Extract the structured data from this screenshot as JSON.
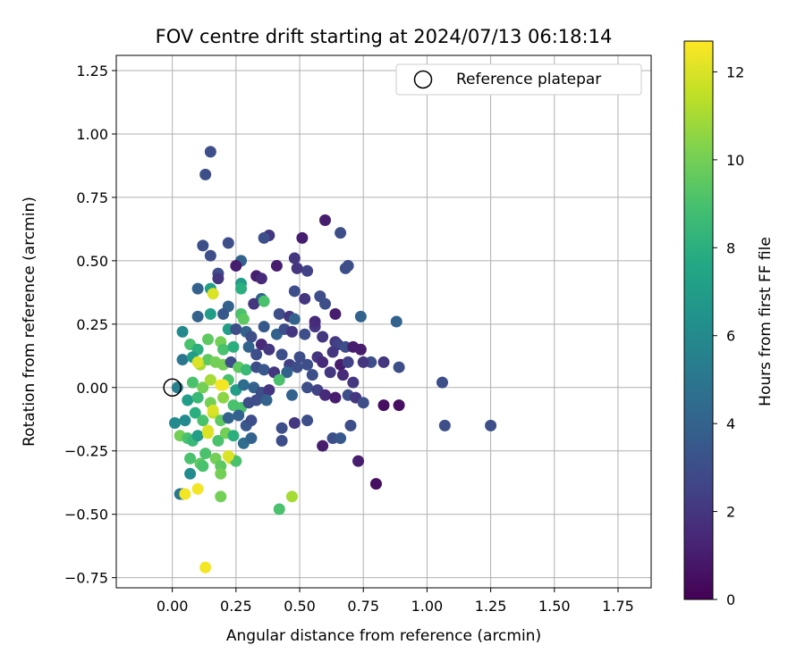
{
  "chart_data": {
    "type": "scatter",
    "title": "FOV centre drift starting at 2024/07/13 06:18:14",
    "xlabel": "Angular distance from reference (arcmin)",
    "ylabel": "Rotation from reference (arcmin)",
    "xlim": [
      -0.22,
      1.88
    ],
    "ylim": [
      -0.79,
      1.31
    ],
    "xticks": [
      0.0,
      0.25,
      0.5,
      0.75,
      1.0,
      1.25,
      1.5,
      1.75
    ],
    "xtick_labels": [
      "0.00",
      "0.25",
      "0.50",
      "0.75",
      "1.00",
      "1.25",
      "1.50",
      "1.75"
    ],
    "yticks": [
      -0.75,
      -0.5,
      -0.25,
      0.0,
      0.25,
      0.5,
      0.75,
      1.0,
      1.25
    ],
    "ytick_labels": [
      "−0.75",
      "−0.50",
      "−0.25",
      "0.00",
      "0.25",
      "0.50",
      "0.75",
      "1.00",
      "1.25"
    ],
    "grid": true,
    "colormap": "viridis",
    "colorbar": {
      "label": "Hours from first FF file",
      "min": 0,
      "max": 12.7,
      "ticks": [
        0,
        2,
        4,
        6,
        8,
        10,
        12
      ],
      "tick_labels": [
        "0",
        "2",
        "4",
        "6",
        "8",
        "10",
        "12"
      ]
    },
    "legend": {
      "position": "top-right",
      "entries": [
        "Reference platepar"
      ]
    },
    "reference_point": {
      "x": 0.0,
      "y": 0.0,
      "label": "Reference platepar"
    },
    "points": [
      [
        0.13,
        0.84,
        3.0
      ],
      [
        0.15,
        0.93,
        3.0
      ],
      [
        0.6,
        0.66,
        1.0
      ],
      [
        0.66,
        0.61,
        3.0
      ],
      [
        0.38,
        0.6,
        2.0
      ],
      [
        0.36,
        0.59,
        3.0
      ],
      [
        0.51,
        0.59,
        1.0
      ],
      [
        0.12,
        0.56,
        3.0
      ],
      [
        0.22,
        0.57,
        3.0
      ],
      [
        0.15,
        0.52,
        3.0
      ],
      [
        0.48,
        0.51,
        2.0
      ],
      [
        0.27,
        0.5,
        4.0
      ],
      [
        0.25,
        0.48,
        1.0
      ],
      [
        0.41,
        0.48,
        1.0
      ],
      [
        0.49,
        0.47,
        2.0
      ],
      [
        0.69,
        0.48,
        3.0
      ],
      [
        0.18,
        0.45,
        3.0
      ],
      [
        0.18,
        0.43,
        2.0
      ],
      [
        0.53,
        0.46,
        2.5
      ],
      [
        0.68,
        0.47,
        3.0
      ],
      [
        0.33,
        0.44,
        1.0
      ],
      [
        0.35,
        0.43,
        1.5
      ],
      [
        0.1,
        0.39,
        4.0
      ],
      [
        0.15,
        0.39,
        7.0
      ],
      [
        0.27,
        0.41,
        7.0
      ],
      [
        0.27,
        0.39,
        8.0
      ],
      [
        0.16,
        0.37,
        12.0
      ],
      [
        0.48,
        0.38,
        3.0
      ],
      [
        0.52,
        0.35,
        2.0
      ],
      [
        0.58,
        0.36,
        3.0
      ],
      [
        0.6,
        0.33,
        3.0
      ],
      [
        0.22,
        0.32,
        4.0
      ],
      [
        0.35,
        0.35,
        4.0
      ],
      [
        0.32,
        0.33,
        2.0
      ],
      [
        0.36,
        0.34,
        9.0
      ],
      [
        0.42,
        0.29,
        3.0
      ],
      [
        0.46,
        0.28,
        2.0
      ],
      [
        0.48,
        0.27,
        4.0
      ],
      [
        0.1,
        0.28,
        4.0
      ],
      [
        0.15,
        0.29,
        7.0
      ],
      [
        0.2,
        0.29,
        3.5
      ],
      [
        0.27,
        0.29,
        9.0
      ],
      [
        0.28,
        0.27,
        9.5
      ],
      [
        0.64,
        0.29,
        1.0
      ],
      [
        0.74,
        0.28,
        4.0
      ],
      [
        0.88,
        0.26,
        4.0
      ],
      [
        0.04,
        0.22,
        6.0
      ],
      [
        0.22,
        0.23,
        7.0
      ],
      [
        0.25,
        0.23,
        3.0
      ],
      [
        0.29,
        0.22,
        4.0
      ],
      [
        0.31,
        0.2,
        3.0
      ],
      [
        0.35,
        0.17,
        1.5
      ],
      [
        0.36,
        0.24,
        3.5
      ],
      [
        0.41,
        0.21,
        4.0
      ],
      [
        0.44,
        0.23,
        3.0
      ],
      [
        0.47,
        0.22,
        2.0
      ],
      [
        0.52,
        0.21,
        3.0
      ],
      [
        0.56,
        0.24,
        2.0
      ],
      [
        0.56,
        0.26,
        1.5
      ],
      [
        0.59,
        0.2,
        2.0
      ],
      [
        0.64,
        0.18,
        2.0
      ],
      [
        0.65,
        0.17,
        2.5
      ],
      [
        0.68,
        0.16,
        3.0
      ],
      [
        0.71,
        0.16,
        1.0
      ],
      [
        0.74,
        0.15,
        1.0
      ],
      [
        0.78,
        0.1,
        3.0
      ],
      [
        0.83,
        0.1,
        2.0
      ],
      [
        0.07,
        0.17,
        9.0
      ],
      [
        0.1,
        0.15,
        8.0
      ],
      [
        0.14,
        0.19,
        9.5
      ],
      [
        0.19,
        0.18,
        10.0
      ],
      [
        0.2,
        0.15,
        9.0
      ],
      [
        0.24,
        0.16,
        8.0
      ],
      [
        0.3,
        0.16,
        4.0
      ],
      [
        0.33,
        0.13,
        3.0
      ],
      [
        0.38,
        0.15,
        2.0
      ],
      [
        0.43,
        0.13,
        3.0
      ],
      [
        0.46,
        0.09,
        2.5
      ],
      [
        0.5,
        0.12,
        3.0
      ],
      [
        0.53,
        0.09,
        3.0
      ],
      [
        0.57,
        0.12,
        2.0
      ],
      [
        0.59,
        0.1,
        1.5
      ],
      [
        0.63,
        0.14,
        2.0
      ],
      [
        0.66,
        0.09,
        1.0
      ],
      [
        0.69,
        0.1,
        2.5
      ],
      [
        0.75,
        0.1,
        2.0
      ],
      [
        0.89,
        0.08,
        3.0
      ],
      [
        0.04,
        0.11,
        5.0
      ],
      [
        0.08,
        0.12,
        7.0
      ],
      [
        0.11,
        0.09,
        11.0
      ],
      [
        0.14,
        0.11,
        9.5
      ],
      [
        0.17,
        0.1,
        10.0
      ],
      [
        0.2,
        0.09,
        10.0
      ],
      [
        0.23,
        0.1,
        3.0
      ],
      [
        0.26,
        0.08,
        9.5
      ],
      [
        0.29,
        0.07,
        8.5
      ],
      [
        0.33,
        0.08,
        3.0
      ],
      [
        0.36,
        0.07,
        3.5
      ],
      [
        0.4,
        0.06,
        2.0
      ],
      [
        0.45,
        0.06,
        4.0
      ],
      [
        0.49,
        0.08,
        3.0
      ],
      [
        0.55,
        0.05,
        3.0
      ],
      [
        0.62,
        0.06,
        2.0
      ],
      [
        0.67,
        0.05,
        1.5
      ],
      [
        0.71,
        0.02,
        2.0
      ],
      [
        0.02,
        0.0,
        5.5
      ],
      [
        0.08,
        0.02,
        9.0
      ],
      [
        0.12,
        0.0,
        10.0
      ],
      [
        0.15,
        0.03,
        11.0
      ],
      [
        0.19,
        0.01,
        12.5
      ],
      [
        0.22,
        0.03,
        9.0
      ],
      [
        0.25,
        -0.01,
        7.0
      ],
      [
        0.28,
        0.01,
        4.5
      ],
      [
        0.32,
        0.0,
        4.0
      ],
      [
        0.35,
        -0.02,
        3.0
      ],
      [
        0.38,
        -0.01,
        2.0
      ],
      [
        0.42,
        0.03,
        9.0
      ],
      [
        0.47,
        -0.03,
        4.0
      ],
      [
        0.53,
        0.0,
        3.0
      ],
      [
        0.57,
        -0.01,
        2.5
      ],
      [
        0.6,
        -0.03,
        1.5
      ],
      [
        0.64,
        -0.04,
        1.0
      ],
      [
        0.69,
        -0.03,
        3.0
      ],
      [
        0.72,
        -0.04,
        2.0
      ],
      [
        0.75,
        -0.06,
        3.0
      ],
      [
        0.83,
        -0.07,
        0.5
      ],
      [
        0.89,
        -0.07,
        0.5
      ],
      [
        0.06,
        -0.05,
        7.0
      ],
      [
        0.1,
        -0.04,
        8.5
      ],
      [
        0.15,
        -0.06,
        10.0
      ],
      [
        0.2,
        -0.04,
        10.5
      ],
      [
        0.24,
        -0.07,
        9.0
      ],
      [
        0.27,
        -0.08,
        9.0
      ],
      [
        0.3,
        -0.06,
        3.0
      ],
      [
        0.33,
        -0.05,
        3.0
      ],
      [
        0.37,
        -0.05,
        4.0
      ],
      [
        0.01,
        -0.14,
        6.0
      ],
      [
        0.05,
        -0.13,
        6.0
      ],
      [
        0.09,
        -0.1,
        8.0
      ],
      [
        0.12,
        -0.13,
        9.0
      ],
      [
        0.16,
        -0.1,
        11.5
      ],
      [
        0.19,
        -0.13,
        9.5
      ],
      [
        0.22,
        -0.12,
        4.0
      ],
      [
        0.26,
        -0.11,
        4.0
      ],
      [
        0.29,
        -0.15,
        3.5
      ],
      [
        0.31,
        -0.13,
        3.0
      ],
      [
        0.43,
        -0.16,
        3.0
      ],
      [
        0.48,
        -0.14,
        2.0
      ],
      [
        0.53,
        -0.13,
        3.0
      ],
      [
        0.7,
        -0.15,
        3.0
      ],
      [
        1.07,
        -0.15,
        3.0
      ],
      [
        1.25,
        -0.15,
        3.0
      ],
      [
        0.03,
        -0.19,
        10.0
      ],
      [
        0.06,
        -0.2,
        9.0
      ],
      [
        0.08,
        -0.21,
        8.5
      ],
      [
        0.1,
        -0.19,
        7.0
      ],
      [
        0.14,
        -0.17,
        12.0
      ],
      [
        0.18,
        -0.21,
        9.0
      ],
      [
        0.21,
        -0.18,
        10.0
      ],
      [
        0.24,
        -0.19,
        8.0
      ],
      [
        0.28,
        -0.22,
        4.5
      ],
      [
        0.31,
        -0.2,
        4.0
      ],
      [
        0.43,
        -0.21,
        3.0
      ],
      [
        0.59,
        -0.23,
        1.0
      ],
      [
        0.63,
        -0.2,
        3.0
      ],
      [
        0.66,
        -0.2,
        3.5
      ],
      [
        0.07,
        -0.28,
        9.0
      ],
      [
        0.11,
        -0.3,
        9.5
      ],
      [
        0.13,
        -0.26,
        9.0
      ],
      [
        0.17,
        -0.28,
        10.0
      ],
      [
        0.19,
        -0.31,
        9.5
      ],
      [
        0.23,
        -0.28,
        12.0
      ],
      [
        0.25,
        -0.29,
        9.0
      ],
      [
        0.73,
        -0.29,
        1.0
      ],
      [
        0.07,
        -0.34,
        6.0
      ],
      [
        0.12,
        -0.31,
        9.0
      ],
      [
        0.19,
        -0.34,
        10.0
      ],
      [
        0.1,
        -0.4,
        12.5
      ],
      [
        0.04,
        -0.42,
        4.0
      ],
      [
        0.03,
        -0.42,
        5.0
      ],
      [
        0.05,
        -0.42,
        12.5
      ],
      [
        0.19,
        -0.43,
        10.0
      ],
      [
        0.42,
        -0.48,
        9.0
      ],
      [
        0.47,
        -0.43,
        11.0
      ],
      [
        0.8,
        -0.38,
        0.5
      ],
      [
        1.06,
        0.02,
        3.0
      ],
      [
        0.13,
        -0.71,
        12.5
      ],
      [
        0.2,
        0.01,
        12.5
      ],
      [
        0.1,
        0.1,
        12.0
      ],
      [
        0.16,
        -0.09,
        12.0
      ],
      [
        0.22,
        -0.27,
        12.0
      ],
      [
        0.14,
        -0.18,
        12.0
      ]
    ]
  }
}
